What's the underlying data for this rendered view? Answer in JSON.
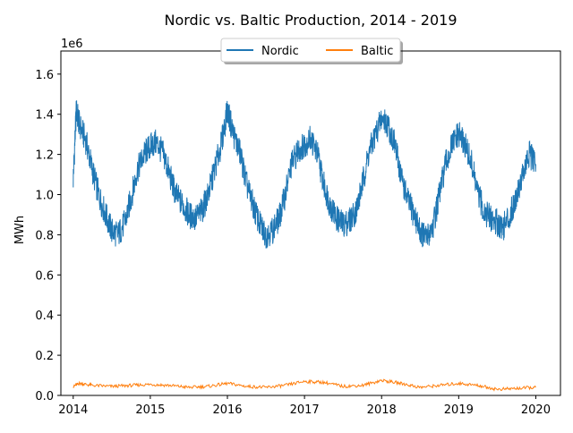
{
  "chart_data": {
    "type": "line",
    "title": "Nordic vs. Baltic Production,  2014 - 2019",
    "xlabel": "",
    "ylabel": "MWh",
    "y_offset_label": "1e6",
    "y_scale_factor": 1000000,
    "xlim": [
      2013.84,
      2020.32
    ],
    "ylim": [
      0,
      1.715
    ],
    "x_ticks": [
      2014,
      2015,
      2016,
      2017,
      2018,
      2019,
      2020
    ],
    "x_tick_labels": [
      "2014",
      "2015",
      "2016",
      "2017",
      "2018",
      "2019",
      "2020"
    ],
    "y_ticks": [
      0.0,
      0.2,
      0.4,
      0.6,
      0.8,
      1.0,
      1.2,
      1.4,
      1.6
    ],
    "y_tick_labels": [
      "0.0",
      "0.2",
      "0.4",
      "0.6",
      "0.8",
      "1.0",
      "1.2",
      "1.4",
      "1.6"
    ],
    "grid": false,
    "legend_position": "top-center",
    "legend": [
      "Nordic",
      "Baltic"
    ],
    "series": [
      {
        "name": "Nordic",
        "color": "#1f77b4",
        "x": [
          2014.0,
          2014.04,
          2014.08,
          2014.17,
          2014.25,
          2014.33,
          2014.42,
          2014.5,
          2014.58,
          2014.67,
          2014.75,
          2014.83,
          2014.92,
          2015.0,
          2015.08,
          2015.17,
          2015.25,
          2015.33,
          2015.42,
          2015.5,
          2015.58,
          2015.67,
          2015.75,
          2015.83,
          2015.92,
          2016.0,
          2016.08,
          2016.17,
          2016.25,
          2016.33,
          2016.42,
          2016.5,
          2016.58,
          2016.67,
          2016.75,
          2016.83,
          2016.92,
          2017.0,
          2017.08,
          2017.17,
          2017.25,
          2017.33,
          2017.42,
          2017.5,
          2017.58,
          2017.67,
          2017.75,
          2017.83,
          2017.92,
          2018.0,
          2018.08,
          2018.17,
          2018.25,
          2018.33,
          2018.42,
          2018.5,
          2018.58,
          2018.67,
          2018.75,
          2018.83,
          2018.92,
          2019.0,
          2019.08,
          2019.17,
          2019.25,
          2019.33,
          2019.42,
          2019.5,
          2019.58,
          2019.67,
          2019.75,
          2019.83,
          2019.92,
          2020.0
        ],
        "values": [
          1.08,
          1.42,
          1.35,
          1.26,
          1.12,
          1.0,
          0.9,
          0.82,
          0.8,
          0.86,
          0.98,
          1.12,
          1.2,
          1.24,
          1.26,
          1.2,
          1.1,
          1.0,
          0.95,
          0.9,
          0.88,
          0.92,
          1.0,
          1.12,
          1.25,
          1.42,
          1.3,
          1.2,
          1.05,
          0.95,
          0.85,
          0.8,
          0.82,
          0.88,
          1.0,
          1.15,
          1.22,
          1.25,
          1.28,
          1.2,
          1.05,
          0.95,
          0.88,
          0.85,
          0.87,
          0.92,
          1.05,
          1.2,
          1.3,
          1.38,
          1.35,
          1.25,
          1.1,
          0.98,
          0.9,
          0.82,
          0.78,
          0.85,
          1.0,
          1.15,
          1.25,
          1.3,
          1.25,
          1.15,
          1.0,
          0.92,
          0.88,
          0.86,
          0.84,
          0.9,
          1.0,
          1.1,
          1.2,
          1.15
        ]
      },
      {
        "name": "Baltic",
        "color": "#ff7f0e",
        "x": [
          2014.0,
          2014.08,
          2014.25,
          2014.5,
          2014.75,
          2015.0,
          2015.25,
          2015.5,
          2015.75,
          2016.0,
          2016.25,
          2016.5,
          2016.75,
          2017.0,
          2017.25,
          2017.5,
          2017.75,
          2018.0,
          2018.25,
          2018.5,
          2018.75,
          2019.0,
          2019.25,
          2019.5,
          2019.75,
          2020.0
        ],
        "values": [
          0.045,
          0.06,
          0.05,
          0.045,
          0.05,
          0.055,
          0.05,
          0.04,
          0.045,
          0.06,
          0.045,
          0.04,
          0.05,
          0.07,
          0.065,
          0.045,
          0.05,
          0.075,
          0.06,
          0.04,
          0.05,
          0.06,
          0.05,
          0.03,
          0.035,
          0.04
        ]
      }
    ]
  }
}
